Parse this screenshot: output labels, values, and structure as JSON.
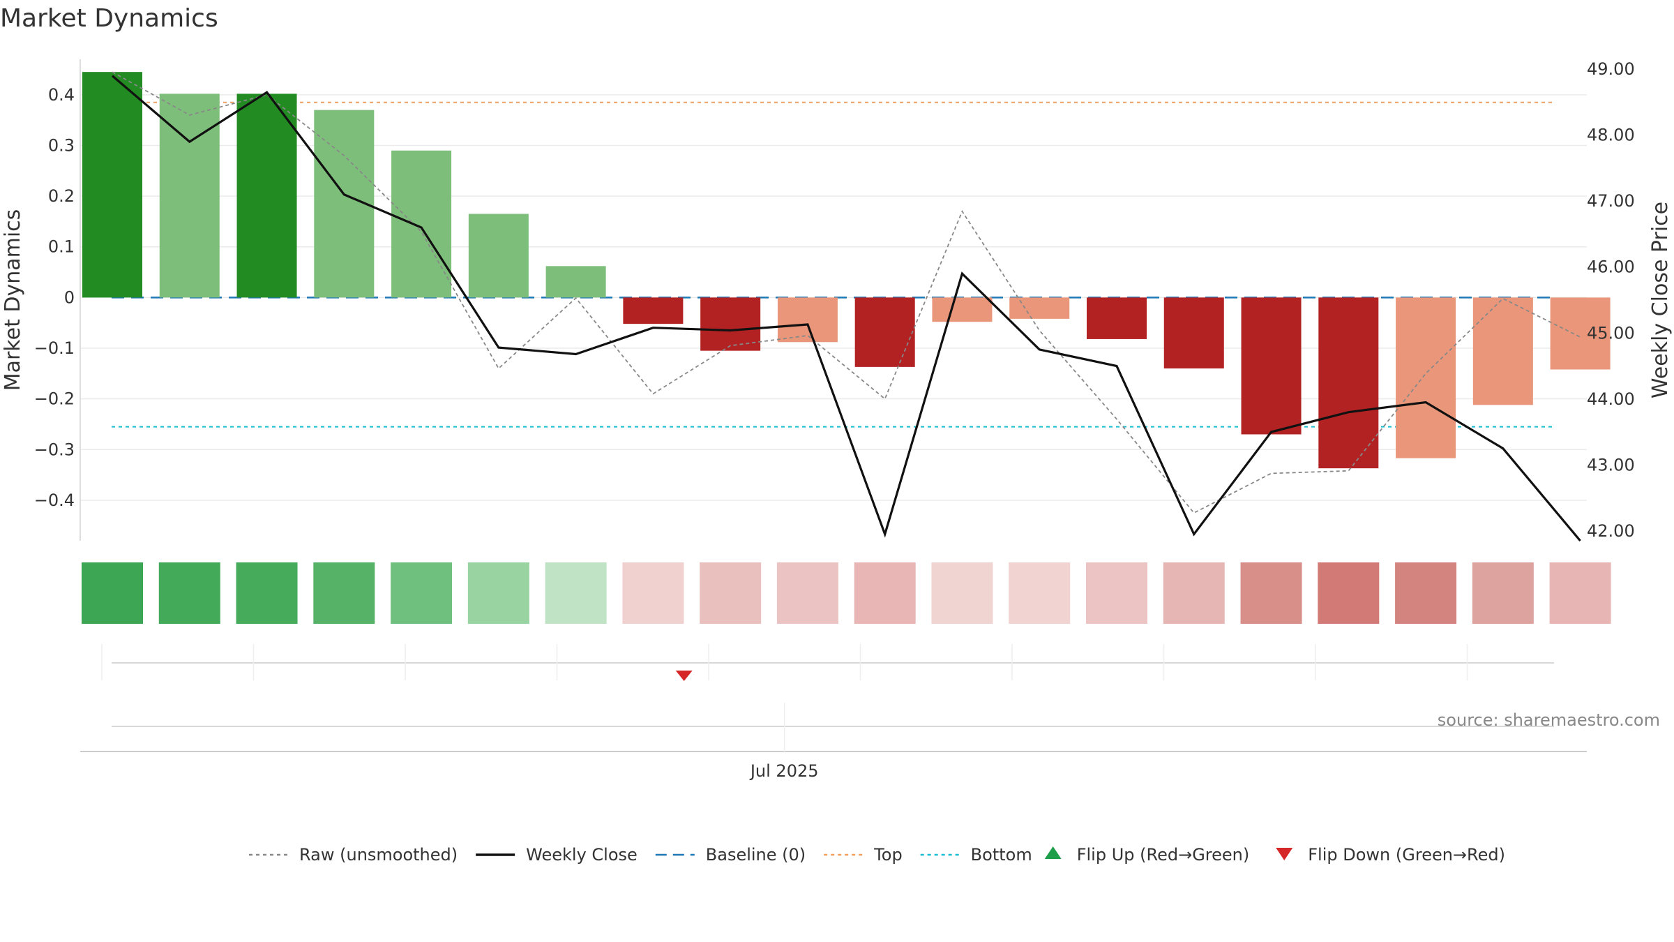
{
  "title": "Market Dynamics",
  "source": "source: sharemaestro.com",
  "colors": {
    "strong_green": "#228B22",
    "light_green": "#7DBE7A",
    "strong_red": "#B22222",
    "light_red": "#E9967A",
    "raw": "#888888",
    "close": "#111111",
    "baseline": "#1F77B4",
    "top": "#F0A060",
    "bottom": "#17BECF",
    "flip_up": "#1E9E4A",
    "flip_down": "#D62728"
  },
  "chart_data": {
    "type": "bar",
    "ylabel_left": "Market Dynamics",
    "ylabel_right": "Weekly Close Price",
    "ylim_left": [
      -0.48,
      0.47
    ],
    "ylim_right": [
      41.85,
      49.15
    ],
    "left_ticks": [
      0.4,
      0.3,
      0.2,
      0.1,
      0,
      -0.1,
      -0.2,
      -0.3,
      -0.4
    ],
    "left_tick_labels": [
      "0.4",
      "0.3",
      "0.2",
      "0.1",
      "0",
      "−0.1",
      "−0.2",
      "−0.3",
      "−0.4"
    ],
    "right_ticks": [
      49,
      48,
      47,
      46,
      45,
      44,
      43,
      42
    ],
    "right_tick_labels": [
      "49.00",
      "48.00",
      "47.00",
      "46.00",
      "45.00",
      "44.00",
      "43.00",
      "42.00"
    ],
    "x_tick_label": "Jul 2025",
    "x_tick_index": 8.7,
    "top_level": 0.385,
    "bottom_level": -0.255,
    "baseline": 0,
    "bars": [
      {
        "value": 0.445,
        "shade": "strong"
      },
      {
        "value": 0.402,
        "shade": "light"
      },
      {
        "value": 0.402,
        "shade": "strong"
      },
      {
        "value": 0.37,
        "shade": "light"
      },
      {
        "value": 0.29,
        "shade": "light"
      },
      {
        "value": 0.165,
        "shade": "light"
      },
      {
        "value": 0.062,
        "shade": "light"
      },
      {
        "value": -0.052,
        "shade": "strong"
      },
      {
        "value": -0.105,
        "shade": "strong"
      },
      {
        "value": -0.088,
        "shade": "light"
      },
      {
        "value": -0.137,
        "shade": "strong"
      },
      {
        "value": -0.048,
        "shade": "light"
      },
      {
        "value": -0.042,
        "shade": "light"
      },
      {
        "value": -0.082,
        "shade": "strong"
      },
      {
        "value": -0.14,
        "shade": "strong"
      },
      {
        "value": -0.27,
        "shade": "strong"
      },
      {
        "value": -0.337,
        "shade": "strong"
      },
      {
        "value": -0.317,
        "shade": "light"
      },
      {
        "value": -0.212,
        "shade": "light"
      },
      {
        "value": -0.142,
        "shade": "light"
      }
    ],
    "raw_unsmoothed": [
      0.445,
      0.36,
      0.4,
      0.28,
      0.13,
      -0.14,
      -0.001,
      -0.19,
      -0.095,
      -0.075,
      -0.2,
      0.17,
      -0.065,
      -0.24,
      -0.425,
      -0.347,
      -0.342,
      -0.15,
      -0.002,
      -0.078
    ],
    "weekly_close": [
      48.9,
      47.9,
      48.65,
      47.1,
      46.6,
      44.78,
      44.68,
      45.08,
      45.04,
      45.13,
      41.95,
      45.9,
      44.75,
      44.5,
      41.95,
      43.5,
      43.8,
      43.95,
      43.25,
      41.85
    ],
    "heat_strip": [
      "#3CA654",
      "#43AA5A",
      "#46AC5C",
      "#55B266",
      "#6FC07E",
      "#9AD3A2",
      "#C0E3C6",
      "#F0D1D0",
      "#EAC0BE",
      "#EBC3C2",
      "#E8B6B5",
      "#F0D4D2",
      "#F1D3D1",
      "#ECC4C3",
      "#E6B6B5",
      "#D88F8A",
      "#D27A75",
      "#D4847F",
      "#DCA39F",
      "#E6B5B4"
    ],
    "flip_markers": [
      {
        "index": 7.4,
        "direction": "down"
      }
    ],
    "legend": [
      {
        "label": "Raw (unsmoothed)",
        "style": "dotted",
        "color_key": "raw"
      },
      {
        "label": "Weekly Close",
        "style": "solid",
        "color_key": "close"
      },
      {
        "label": "Baseline (0)",
        "style": "dashed",
        "color_key": "baseline"
      },
      {
        "label": "Top",
        "style": "dotted",
        "color_key": "top"
      },
      {
        "label": "Bottom",
        "style": "dotted",
        "color_key": "bottom"
      },
      {
        "label": "Flip Up (Red→Green)",
        "style": "triangle-up",
        "color_key": "flip_up"
      },
      {
        "label": "Flip Down (Green→Red)",
        "style": "triangle-down",
        "color_key": "flip_down"
      }
    ]
  }
}
